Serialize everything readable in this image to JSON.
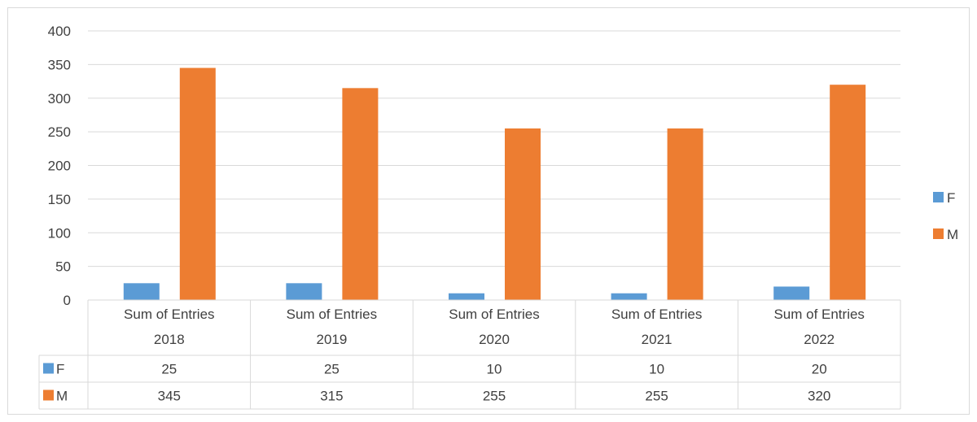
{
  "chart_data": {
    "type": "bar",
    "categories": [
      [
        "Sum of Entries",
        "2018"
      ],
      [
        "Sum of Entries",
        "2019"
      ],
      [
        "Sum of Entries",
        "2020"
      ],
      [
        "Sum of Entries",
        "2021"
      ],
      [
        "Sum of Entries",
        "2022"
      ]
    ],
    "series": [
      {
        "name": "F",
        "values": [
          25,
          25,
          10,
          10,
          20
        ],
        "color": "#5b9bd5"
      },
      {
        "name": "M",
        "values": [
          345,
          315,
          255,
          255,
          320
        ],
        "color": "#ed7d31"
      }
    ],
    "ylim": [
      0,
      400
    ],
    "yticks": [
      0,
      50,
      100,
      150,
      200,
      250,
      300,
      350,
      400
    ],
    "grid": true,
    "legend": "right",
    "data_table": true,
    "colors": {
      "gridline": "#d9d9d9",
      "text": "#404040"
    }
  }
}
